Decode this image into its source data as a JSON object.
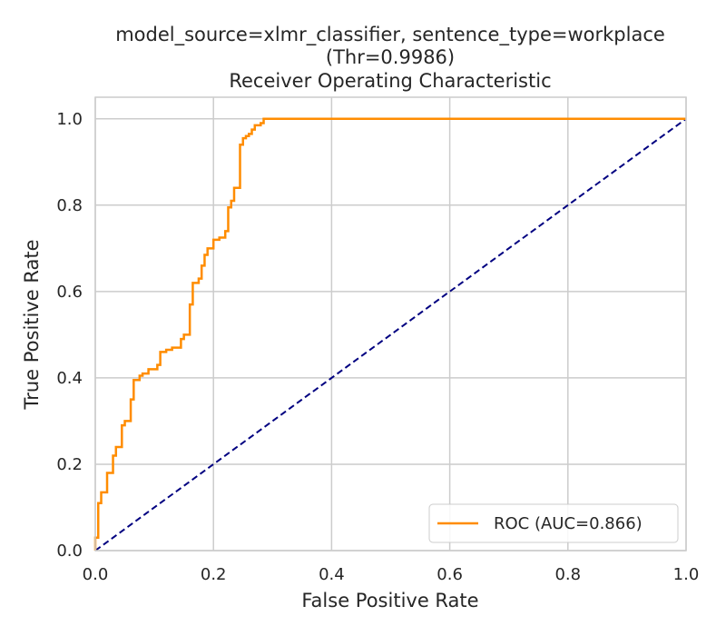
{
  "chart_data": {
    "type": "line",
    "title_lines": [
      "model_source=xlmr_classifier, sentence_type=workplace",
      "(Thr=0.9986)",
      "Receiver Operating Characteristic"
    ],
    "xlabel": "False Positive Rate",
    "ylabel": "True Positive Rate",
    "xlim": [
      0,
      1
    ],
    "ylim": [
      0,
      1.05
    ],
    "xticks": [
      "0.0",
      "0.2",
      "0.4",
      "0.6",
      "0.8",
      "1.0"
    ],
    "yticks": [
      "0.0",
      "0.2",
      "0.4",
      "0.6",
      "0.8",
      "1.0"
    ],
    "grid": true,
    "legend_position": "lower-right",
    "colors": {
      "roc": "#ff8c00",
      "diagonal": "#000080",
      "grid": "#cccccc",
      "axes": "#cccccc"
    },
    "series": [
      {
        "name": "ROC (AUC=0.866)",
        "style": "solid",
        "x": [
          0,
          0,
          0.005,
          0.005,
          0.01,
          0.01,
          0.02,
          0.02,
          0.03,
          0.03,
          0.035,
          0.035,
          0.045,
          0.045,
          0.05,
          0.05,
          0.06,
          0.06,
          0.065,
          0.065,
          0.075,
          0.075,
          0.08,
          0.08,
          0.09,
          0.09,
          0.105,
          0.105,
          0.11,
          0.11,
          0.12,
          0.12,
          0.13,
          0.13,
          0.145,
          0.145,
          0.15,
          0.15,
          0.16,
          0.16,
          0.165,
          0.165,
          0.175,
          0.175,
          0.18,
          0.18,
          0.185,
          0.185,
          0.19,
          0.19,
          0.2,
          0.2,
          0.21,
          0.21,
          0.22,
          0.22,
          0.225,
          0.225,
          0.23,
          0.23,
          0.235,
          0.235,
          0.245,
          0.245,
          0.25,
          0.25,
          0.255,
          0.255,
          0.26,
          0.26,
          0.265,
          0.265,
          0.27,
          0.27,
          0.28,
          0.28,
          0.285,
          0.285,
          0.29,
          0.29,
          0.295,
          0.295,
          0.3,
          0.3,
          1.0
        ],
        "y": [
          0,
          0.03,
          0.03,
          0.11,
          0.11,
          0.135,
          0.135,
          0.18,
          0.18,
          0.22,
          0.22,
          0.24,
          0.24,
          0.29,
          0.29,
          0.3,
          0.3,
          0.35,
          0.35,
          0.395,
          0.395,
          0.405,
          0.405,
          0.41,
          0.41,
          0.42,
          0.42,
          0.43,
          0.43,
          0.46,
          0.46,
          0.465,
          0.465,
          0.47,
          0.47,
          0.49,
          0.49,
          0.5,
          0.5,
          0.57,
          0.57,
          0.62,
          0.62,
          0.63,
          0.63,
          0.66,
          0.66,
          0.685,
          0.685,
          0.7,
          0.7,
          0.72,
          0.72,
          0.725,
          0.725,
          0.74,
          0.74,
          0.795,
          0.795,
          0.81,
          0.81,
          0.84,
          0.84,
          0.94,
          0.94,
          0.955,
          0.955,
          0.96,
          0.96,
          0.965,
          0.965,
          0.975,
          0.975,
          0.985,
          0.985,
          0.99,
          0.99,
          1.0,
          1.0,
          1.0,
          1.0,
          1.0,
          1.0,
          1.0,
          1.0
        ]
      },
      {
        "name": "",
        "style": "dashed",
        "x": [
          0,
          1
        ],
        "y": [
          0,
          1
        ]
      }
    ]
  }
}
